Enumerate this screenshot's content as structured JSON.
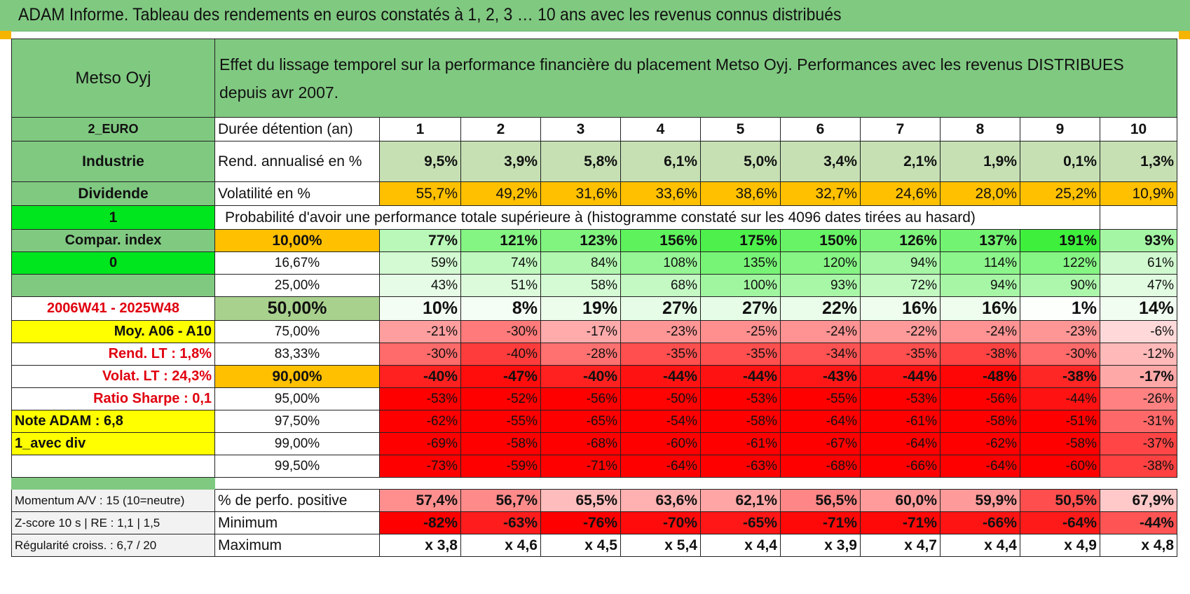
{
  "header": {
    "title": "ADAM Informe. Tableau des rendements en euros constatés à 1, 2, 3 … 10 ans avec les revenus connus distribués"
  },
  "left": {
    "name": "Metso Oyj",
    "currency": "2_EURO",
    "sector": "Industrie",
    "income_type": "Dividende",
    "flag1": "1",
    "compar_index": "Compar. index",
    "flag2": "0",
    "period": "2006W41 - 2025W48",
    "moy": "Moy. A06 - A10",
    "rend_lt": "Rend. LT :   1,8%",
    "volat_lt": "Volat. LT :   24,3%",
    "sharpe": "Ratio Sharpe :    0,1",
    "note": "Note ADAM : 6,8",
    "mode": "1_avec div"
  },
  "description": "Effet du lissage temporel sur la performance financière du placement Metso Oyj. Performances avec les revenus DISTRIBUES depuis avr 2007.",
  "years_label": "Durée détention (an)",
  "years": [
    "1",
    "2",
    "3",
    "4",
    "5",
    "6",
    "7",
    "8",
    "9",
    "10"
  ],
  "rend_label": "Rend. annualisé en %",
  "rend": [
    "9,5%",
    "3,9%",
    "5,8%",
    "6,1%",
    "5,0%",
    "3,4%",
    "2,1%",
    "1,9%",
    "0,1%",
    "1,3%"
  ],
  "vol_label": "Volatilité en %",
  "vol": [
    "55,7%",
    "49,2%",
    "31,6%",
    "33,6%",
    "38,6%",
    "32,7%",
    "24,6%",
    "28,0%",
    "25,2%",
    "10,9%"
  ],
  "prob_title": "Probabilité d'avoir une performance totale supérieure à (histogramme constaté sur les 4096 dates tirées au hasard)",
  "prob_rows": [
    {
      "p": "10,00%",
      "vals": [
        "77%",
        "121%",
        "123%",
        "156%",
        "175%",
        "150%",
        "126%",
        "137%",
        "191%",
        "93%"
      ],
      "colors": [
        "#b9f8b8",
        "#84f483",
        "#80f47f",
        "#5ef35d",
        "#4ef04c",
        "#68f366",
        "#7ef47c",
        "#72f371",
        "#3ef03c",
        "#a5f6a4"
      ],
      "bold": true,
      "pcolor": "#ffc000"
    },
    {
      "p": "16,67%",
      "vals": [
        "59%",
        "74%",
        "84%",
        "108%",
        "135%",
        "120%",
        "94%",
        "114%",
        "122%",
        "61%"
      ],
      "colors": [
        "#d3fad2",
        "#bff9be",
        "#b1f7b0",
        "#96f695",
        "#77f475",
        "#86f584",
        "#a7f6a6",
        "#8cf58b",
        "#85f584",
        "#d0f9cf"
      ],
      "bold": false,
      "pcolor": "#ffffff"
    },
    {
      "p": "25,00%",
      "vals": [
        "43%",
        "51%",
        "58%",
        "68%",
        "100%",
        "93%",
        "72%",
        "94%",
        "90%",
        "47%"
      ],
      "colors": [
        "#e6fce6",
        "#dbfbdb",
        "#d4fbd4",
        "#c5f9c4",
        "#a0f69f",
        "#a8f7a7",
        "#c2f9c1",
        "#a7f6a6",
        "#adf7ac",
        "#e1fce0"
      ],
      "bold": false,
      "pcolor": "#ffffff"
    },
    {
      "p": "50,00%",
      "vals": [
        "10%",
        "8%",
        "19%",
        "27%",
        "27%",
        "22%",
        "16%",
        "16%",
        "1%",
        "14%"
      ],
      "colors": [
        "#f3fdf3",
        "#f5fef5",
        "#ecfdec",
        "#e6fce6",
        "#e6fce6",
        "#eafdea",
        "#eefded",
        "#eefded",
        "#fdfffd",
        "#f0fdf0"
      ],
      "bold": true,
      "big": true,
      "pcolor": "#a9d18e"
    },
    {
      "p": "75,00%",
      "vals": [
        "-21%",
        "-30%",
        "-17%",
        "-23%",
        "-25%",
        "-24%",
        "-22%",
        "-24%",
        "-23%",
        "-6%"
      ],
      "colors": [
        "#ff9e9e",
        "#ff7a7a",
        "#ffabab",
        "#ff9696",
        "#ff8f8f",
        "#ff9292",
        "#ff9a9a",
        "#ff9292",
        "#ff9696",
        "#ffd9d9"
      ],
      "bold": false,
      "pcolor": "#ffffff"
    },
    {
      "p": "83,33%",
      "vals": [
        "-30%",
        "-40%",
        "-28%",
        "-35%",
        "-35%",
        "-34%",
        "-35%",
        "-38%",
        "-30%",
        "-12%"
      ],
      "colors": [
        "#ff6a6a",
        "#ff3c3c",
        "#ff7171",
        "#ff4f4f",
        "#ff4f4f",
        "#ff5353",
        "#ff4f4f",
        "#ff4343",
        "#ff6a6a",
        "#ffb9b9"
      ],
      "bold": false,
      "pcolor": "#ffffff"
    },
    {
      "p": "90,00%",
      "vals": [
        "-40%",
        "-47%",
        "-40%",
        "-44%",
        "-44%",
        "-43%",
        "-44%",
        "-48%",
        "-38%",
        "-17%"
      ],
      "colors": [
        "#ff2020",
        "#ff0c0c",
        "#ff2020",
        "#ff1212",
        "#ff1212",
        "#ff1616",
        "#ff1212",
        "#ff0606",
        "#ff2626",
        "#ffa8a8"
      ],
      "bold": true,
      "pcolor": "#ffc000"
    },
    {
      "p": "95,00%",
      "vals": [
        "-53%",
        "-52%",
        "-56%",
        "-50%",
        "-53%",
        "-55%",
        "-53%",
        "-56%",
        "-44%",
        "-26%"
      ],
      "colors": [
        "#ff0000",
        "#ff0000",
        "#ff0000",
        "#ff0202",
        "#ff0000",
        "#ff0000",
        "#ff0000",
        "#ff0000",
        "#ff1212",
        "#ff8181"
      ],
      "bold": false,
      "pcolor": "#ffffff"
    },
    {
      "p": "97,50%",
      "vals": [
        "-62%",
        "-55%",
        "-65%",
        "-54%",
        "-58%",
        "-64%",
        "-61%",
        "-58%",
        "-51%",
        "-31%"
      ],
      "colors": [
        "#ff0000",
        "#ff0000",
        "#ff0000",
        "#ff0000",
        "#ff0000",
        "#ff0000",
        "#ff0000",
        "#ff0000",
        "#ff0000",
        "#ff6868"
      ],
      "bold": false,
      "pcolor": "#ffffff"
    },
    {
      "p": "99,00%",
      "vals": [
        "-69%",
        "-58%",
        "-68%",
        "-60%",
        "-61%",
        "-67%",
        "-64%",
        "-62%",
        "-58%",
        "-37%"
      ],
      "colors": [
        "#ff0000",
        "#ff0000",
        "#ff0000",
        "#ff0000",
        "#ff0000",
        "#ff0000",
        "#ff0000",
        "#ff0000",
        "#ff0000",
        "#ff4545"
      ],
      "bold": false,
      "pcolor": "#ffffff"
    },
    {
      "p": "99,50%",
      "vals": [
        "-73%",
        "-59%",
        "-71%",
        "-64%",
        "-63%",
        "-68%",
        "-66%",
        "-64%",
        "-60%",
        "-38%"
      ],
      "colors": [
        "#ff0000",
        "#ff0000",
        "#ff0000",
        "#ff0000",
        "#ff0000",
        "#ff0000",
        "#ff0000",
        "#ff0000",
        "#ff0000",
        "#ff4141"
      ],
      "bold": false,
      "pcolor": "#ffffff"
    }
  ],
  "bottom": [
    {
      "left": "Momentum A/V : 15 (10=neutre)",
      "label": "% de perfo. positive",
      "vals": [
        "57,4%",
        "56,7%",
        "65,5%",
        "63,6%",
        "62,1%",
        "56,5%",
        "60,0%",
        "59,9%",
        "50,5%",
        "67,9%"
      ],
      "colors": [
        "#ff8f8f",
        "#ff8a8a",
        "#ffbcbc",
        "#ffb0b0",
        "#ffa5a5",
        "#ff8686",
        "#ff9b9b",
        "#ff9a9a",
        "#ff4e4e",
        "#ffc9c9"
      ]
    },
    {
      "left": "Z-score 10 s | RE : 1,1 | 1,5",
      "label": "Minimum",
      "vals": [
        "-82%",
        "-63%",
        "-76%",
        "-70%",
        "-65%",
        "-71%",
        "-71%",
        "-66%",
        "-64%",
        "-44%"
      ],
      "colors": [
        "#ff0000",
        "#ff1c1c",
        "#ff0000",
        "#ff0b0b",
        "#ff1616",
        "#ff0808",
        "#ff0808",
        "#ff1414",
        "#ff1a1a",
        "#ff5454"
      ]
    },
    {
      "left": "Régularité croiss. : 6,7 / 20",
      "label": "Maximum",
      "vals": [
        "x 3,8",
        "x 4,6",
        "x 4,5",
        "x 5,4",
        "x 4,4",
        "x 3,9",
        "x 4,7",
        "x 4,4",
        "x 4,9",
        "x 4,8"
      ],
      "colors": [
        "#ffffff",
        "#ffffff",
        "#ffffff",
        "#ffffff",
        "#ffffff",
        "#ffffff",
        "#ffffff",
        "#ffffff",
        "#ffffff",
        "#ffffff"
      ]
    }
  ],
  "colors": {
    "header_green": "#80c981",
    "light_green": "#c6e0b4",
    "bright_green": "#00e61e",
    "orange": "#ffc000",
    "yellow": "#ffff00",
    "red_text": "#e0000f"
  }
}
